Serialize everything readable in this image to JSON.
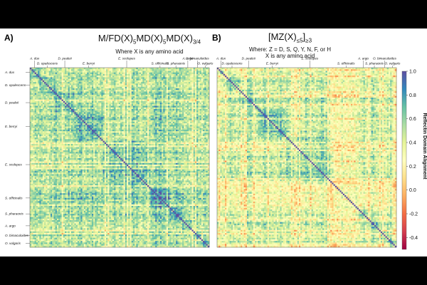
{
  "figure": {
    "panels": [
      {
        "letter": "A)",
        "title_main": "M/FD(X)",
        "title_sub1": "5",
        "title_mid1": "MD(X)",
        "title_sub2": "5",
        "title_mid2": "MD(X)",
        "title_sub3": "3/4",
        "subtitle": "Where X is any amino acid"
      },
      {
        "letter": "B)",
        "title_main": "[MZ(X)",
        "title_sub1": "≤5",
        "title_mid1": "]",
        "title_sub2": "≥3",
        "subtitle_line1": "Where: Z = D, S, Q, Y, N, F, or H",
        "subtitle_line2": "X is any amino acid"
      }
    ]
  },
  "chart_data": [
    {
      "type": "heatmap",
      "title": "M/FD(X)5MD(X)5MD(X)3/4",
      "subtitle": "Where X is any amino acid",
      "top_labels": [
        "A. dux",
        "D. opalescens",
        "D. pealeii",
        "E. berryi",
        "E. scolopes",
        "S. officinalis",
        "A. argo",
        "S. pharaonis",
        "O. bimaculoides",
        "O. vulgaris"
      ],
      "left_labels": [
        "A. dux",
        "D. opalescens",
        "D. pealeii",
        "E. berryi",
        "E. scolopes",
        "S. officinalis",
        "S. pharaonis",
        "A. argo",
        "O. bimaculoides",
        "O. vulgaris"
      ],
      "groups": [
        {
          "name": "A. dux",
          "size": 6,
          "base": 0.62
        },
        {
          "name": "D. opalescens",
          "size": 10,
          "base": 0.58
        },
        {
          "name": "D. pealeii",
          "size": 12,
          "base": 0.64
        },
        {
          "name": "E. berryi",
          "size": 18,
          "base": 0.66
        },
        {
          "name": "E. scolopes",
          "size": 30,
          "base": 0.63
        },
        {
          "name": "S. officinalis",
          "size": 12,
          "base": 0.78
        },
        {
          "name": "S. pharaonis",
          "size": 8,
          "base": 0.7
        },
        {
          "name": "A. argo",
          "size": 7,
          "base": 0.6
        },
        {
          "name": "O. bimaculoides",
          "size": 5,
          "base": 0.62
        },
        {
          "name": "O. vulgaris",
          "size": 5,
          "base": 0.6
        }
      ],
      "range": [
        -0.5,
        1.0
      ]
    },
    {
      "type": "heatmap",
      "title": "[MZ(X)≤5]≥3",
      "subtitle": "Where: Z = D, S, Q, Y, N, F, or H X is any amino acid",
      "top_labels": [
        "A. dux",
        "D. opalescens",
        "D. pealeii",
        "E. berryi",
        "E. scolopes",
        "S. officinalis",
        "A. argo",
        "S. pharaonis",
        "O. bimaculoides",
        "O. vulgaris"
      ],
      "groups": [
        {
          "name": "A. dux",
          "size": 5,
          "base": 0.55
        },
        {
          "name": "D. opalescens",
          "size": 9,
          "base": 0.55
        },
        {
          "name": "D. pealeii",
          "size": 12,
          "base": 0.6
        },
        {
          "name": "E. berryi",
          "size": 18,
          "base": 0.62
        },
        {
          "name": "E. scolopes",
          "size": 30,
          "base": 0.58
        },
        {
          "name": "S. officinalis",
          "size": 16,
          "base": 0.28
        },
        {
          "name": "A. argo",
          "size": 6,
          "base": 0.55
        },
        {
          "name": "S. pharaonis",
          "size": 8,
          "base": 0.58
        },
        {
          "name": "O. bimaculoides",
          "size": 5,
          "base": 0.6
        },
        {
          "name": "O. vulgaris",
          "size": 5,
          "base": 0.58
        }
      ],
      "range": [
        -0.5,
        1.0
      ]
    }
  ],
  "colorbar": {
    "label": "Reflectin Domain Alignment",
    "ticks": [
      "1.0",
      "0.8",
      "0.6",
      "0.4",
      "0.2",
      "0.0",
      "-0.2",
      "-0.4"
    ],
    "tick_values": [
      1.0,
      0.8,
      0.6,
      0.4,
      0.2,
      0.0,
      -0.2,
      -0.4
    ],
    "min": -0.5,
    "max": 1.0,
    "colors": [
      "#9e0142",
      "#d53e4f",
      "#f46d43",
      "#fdae61",
      "#fee08b",
      "#ffffbf",
      "#e6f598",
      "#abdda4",
      "#66c2a5",
      "#3288bd",
      "#5e4fa2"
    ]
  }
}
